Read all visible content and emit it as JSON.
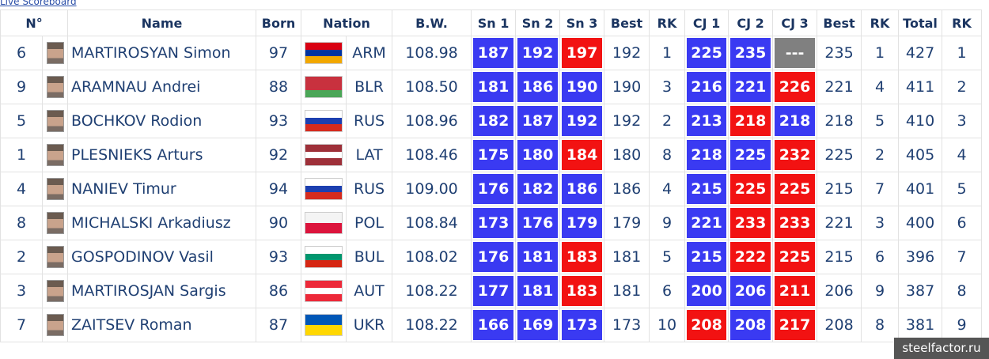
{
  "link": "Live Scoreboard",
  "watermark": "steelfactor.ru",
  "header": {
    "columns": [
      "N°",
      "Name",
      "Born",
      "Nation",
      "B.W.",
      "Sn 1",
      "Sn 2",
      "Sn 3",
      "Best",
      "RK",
      "CJ 1",
      "CJ 2",
      "CJ 3",
      "Best",
      "RK",
      "Total",
      "RK"
    ]
  },
  "table": {
    "rows": [
      {
        "no": "6",
        "name": "MARTIROSYAN Simon",
        "born": "97",
        "flag": [
          "#d90012",
          "#0033a0",
          "#f2a800"
        ],
        "nation": "ARM",
        "bw": "108.98",
        "snatch": [
          {
            "text": "187",
            "color": "#3a3af2"
          },
          {
            "text": "192",
            "color": "#3a3af2"
          },
          {
            "text": "197",
            "color": "#f21212"
          }
        ],
        "sn_best": "192",
        "sn_rk": "1",
        "cj": [
          {
            "text": "225",
            "color": "#3a3af2"
          },
          {
            "text": "235",
            "color": "#3a3af2"
          },
          {
            "text": "---",
            "color": "#808080"
          }
        ],
        "cj_best": "235",
        "cj_rk": "1",
        "total": "427",
        "rk": "1"
      },
      {
        "no": "9",
        "name": "ARAMNAU Andrei",
        "born": "88",
        "flag": [
          "#c8313e",
          "#c8313e",
          "#4aa657"
        ],
        "nation": "BLR",
        "bw": "108.50",
        "snatch": [
          {
            "text": "181",
            "color": "#3a3af2"
          },
          {
            "text": "186",
            "color": "#3a3af2"
          },
          {
            "text": "190",
            "color": "#3a3af2"
          }
        ],
        "sn_best": "190",
        "sn_rk": "3",
        "cj": [
          {
            "text": "216",
            "color": "#3a3af2"
          },
          {
            "text": "221",
            "color": "#3a3af2"
          },
          {
            "text": "226",
            "color": "#f21212"
          }
        ],
        "cj_best": "221",
        "cj_rk": "4",
        "total": "411",
        "rk": "2"
      },
      {
        "no": "5",
        "name": "BOCHKOV Rodion",
        "born": "93",
        "flag": [
          "#ffffff",
          "#1c3fb0",
          "#d52b1e"
        ],
        "nation": "RUS",
        "bw": "108.96",
        "snatch": [
          {
            "text": "182",
            "color": "#3a3af2"
          },
          {
            "text": "187",
            "color": "#3a3af2"
          },
          {
            "text": "192",
            "color": "#3a3af2"
          }
        ],
        "sn_best": "192",
        "sn_rk": "2",
        "cj": [
          {
            "text": "213",
            "color": "#3a3af2"
          },
          {
            "text": "218",
            "color": "#f21212"
          },
          {
            "text": "218",
            "color": "#3a3af2"
          }
        ],
        "cj_best": "218",
        "cj_rk": "5",
        "total": "410",
        "rk": "3"
      },
      {
        "no": "1",
        "name": "PLESNIEKS Arturs",
        "born": "92",
        "flag": [
          "#9e3039",
          "#ffffff",
          "#9e3039"
        ],
        "nation": "LAT",
        "bw": "108.46",
        "snatch": [
          {
            "text": "175",
            "color": "#3a3af2"
          },
          {
            "text": "180",
            "color": "#3a3af2"
          },
          {
            "text": "184",
            "color": "#f21212"
          }
        ],
        "sn_best": "180",
        "sn_rk": "8",
        "cj": [
          {
            "text": "218",
            "color": "#3a3af2"
          },
          {
            "text": "225",
            "color": "#3a3af2"
          },
          {
            "text": "232",
            "color": "#f21212"
          }
        ],
        "cj_best": "225",
        "cj_rk": "2",
        "total": "405",
        "rk": "4"
      },
      {
        "no": "4",
        "name": "NANIEV Timur",
        "born": "94",
        "flag": [
          "#ffffff",
          "#1c3fb0",
          "#d52b1e"
        ],
        "nation": "RUS",
        "bw": "109.00",
        "snatch": [
          {
            "text": "176",
            "color": "#3a3af2"
          },
          {
            "text": "182",
            "color": "#3a3af2"
          },
          {
            "text": "186",
            "color": "#3a3af2"
          }
        ],
        "sn_best": "186",
        "sn_rk": "4",
        "cj": [
          {
            "text": "215",
            "color": "#3a3af2"
          },
          {
            "text": "225",
            "color": "#f21212"
          },
          {
            "text": "225",
            "color": "#f21212"
          }
        ],
        "cj_best": "215",
        "cj_rk": "7",
        "total": "401",
        "rk": "5"
      },
      {
        "no": "8",
        "name": "MICHALSKI Arkadiusz",
        "born": "90",
        "flag": [
          "#f4f4f4",
          "#dc143c"
        ],
        "nation": "POL",
        "bw": "108.84",
        "snatch": [
          {
            "text": "173",
            "color": "#3a3af2"
          },
          {
            "text": "176",
            "color": "#3a3af2"
          },
          {
            "text": "179",
            "color": "#3a3af2"
          }
        ],
        "sn_best": "179",
        "sn_rk": "9",
        "cj": [
          {
            "text": "221",
            "color": "#3a3af2"
          },
          {
            "text": "233",
            "color": "#f21212"
          },
          {
            "text": "233",
            "color": "#f21212"
          }
        ],
        "cj_best": "221",
        "cj_rk": "3",
        "total": "400",
        "rk": "6"
      },
      {
        "no": "2",
        "name": "GOSPODINOV Vasil",
        "born": "93",
        "flag": [
          "#ffffff",
          "#00966e",
          "#d62612"
        ],
        "nation": "BUL",
        "bw": "108.02",
        "snatch": [
          {
            "text": "176",
            "color": "#3a3af2"
          },
          {
            "text": "181",
            "color": "#3a3af2"
          },
          {
            "text": "183",
            "color": "#f21212"
          }
        ],
        "sn_best": "181",
        "sn_rk": "5",
        "cj": [
          {
            "text": "215",
            "color": "#3a3af2"
          },
          {
            "text": "222",
            "color": "#f21212"
          },
          {
            "text": "225",
            "color": "#f21212"
          }
        ],
        "cj_best": "215",
        "cj_rk": "6",
        "total": "396",
        "rk": "7"
      },
      {
        "no": "3",
        "name": "MARTIROSJAN Sargis",
        "born": "86",
        "flag": [
          "#ed2939",
          "#ffffff",
          "#ed2939"
        ],
        "nation": "AUT",
        "bw": "108.22",
        "snatch": [
          {
            "text": "177",
            "color": "#3a3af2"
          },
          {
            "text": "181",
            "color": "#3a3af2"
          },
          {
            "text": "183",
            "color": "#f21212"
          }
        ],
        "sn_best": "181",
        "sn_rk": "6",
        "cj": [
          {
            "text": "200",
            "color": "#3a3af2"
          },
          {
            "text": "206",
            "color": "#3a3af2"
          },
          {
            "text": "211",
            "color": "#f21212"
          }
        ],
        "cj_best": "206",
        "cj_rk": "9",
        "total": "387",
        "rk": "8"
      },
      {
        "no": "7",
        "name": "ZAITSEV Roman",
        "born": "87",
        "flag": [
          "#0057b7",
          "#ffd700"
        ],
        "nation": "UKR",
        "bw": "108.22",
        "snatch": [
          {
            "text": "166",
            "color": "#3a3af2"
          },
          {
            "text": "169",
            "color": "#3a3af2"
          },
          {
            "text": "173",
            "color": "#3a3af2"
          }
        ],
        "sn_best": "173",
        "sn_rk": "10",
        "cj": [
          {
            "text": "208",
            "color": "#f21212"
          },
          {
            "text": "208",
            "color": "#3a3af2"
          },
          {
            "text": "217",
            "color": "#f21212"
          }
        ],
        "cj_best": "208",
        "cj_rk": "8",
        "total": "381",
        "rk": "9"
      }
    ]
  }
}
